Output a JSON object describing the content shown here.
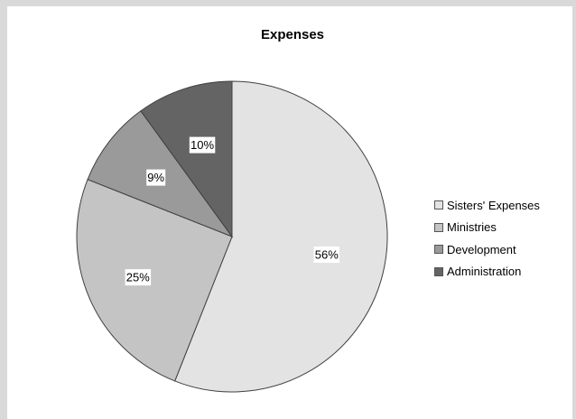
{
  "chart_data": {
    "type": "pie",
    "title": "Expenses",
    "categories": [
      "Sisters' Expenses",
      "Ministries",
      "Development",
      "Administration"
    ],
    "values": [
      56,
      25,
      9,
      10
    ],
    "data_labels": [
      "56%",
      "25%",
      "9%",
      "10%"
    ],
    "colors": [
      "#e3e3e3",
      "#c4c4c4",
      "#9a9a9a",
      "#646464"
    ],
    "legend_position": "right",
    "start_angle_deg": 0,
    "direction": "clockwise"
  }
}
